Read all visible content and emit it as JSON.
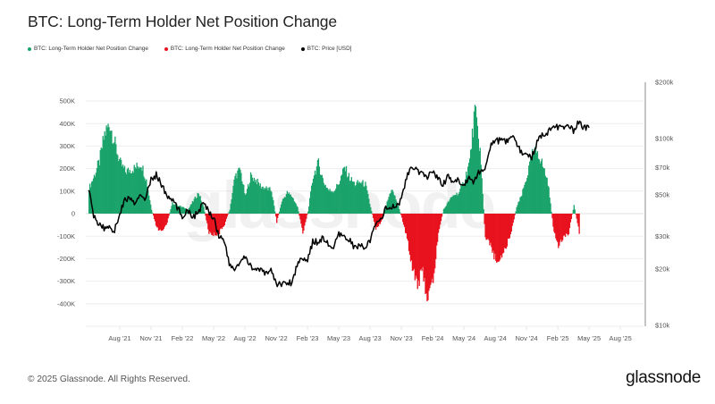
{
  "header": {
    "title": "BTC: Long-Term Holder Net Position Change"
  },
  "legend": [
    {
      "label": "BTC: Long-Term Holder Net Position Change",
      "color": "#1aa36a"
    },
    {
      "label": "BTC: Long-Term Holder Net Position Change",
      "color": "#e8121e"
    },
    {
      "label": "BTC: Price [USD]",
      "color": "#000000"
    }
  ],
  "footer": {
    "copyright": "© 2025 Glassnode. All Rights Reserved.",
    "logo": "glassnode"
  },
  "watermark": "glassnode",
  "chart_data": {
    "type": "area",
    "title": "BTC: Long-Term Holder Net Position Change",
    "xlabel": "",
    "ylabel": "",
    "y_left": {
      "ylim": [
        -450000,
        550000
      ],
      "ticks": [
        500000,
        400000,
        300000,
        200000,
        100000,
        0,
        -100000,
        -200000,
        -300000,
        -400000
      ],
      "tick_labels": [
        "500K",
        "400K",
        "300K",
        "200K",
        "100K",
        "0",
        "-100K",
        "-200K",
        "-300K",
        "-400K"
      ]
    },
    "y_right": {
      "scale": "log",
      "ylim": [
        10000,
        200000
      ],
      "ticks": [
        200000,
        100000,
        70000,
        50000,
        30000,
        20000,
        10000
      ],
      "tick_labels": [
        "$200k",
        "$100k",
        "$70k",
        "$50k",
        "$30k",
        "$20k",
        "$10k"
      ]
    },
    "x_ticks": [
      {
        "month": 3,
        "label": "Aug '21"
      },
      {
        "month": 6,
        "label": "Nov '21"
      },
      {
        "month": 9,
        "label": "Feb '22"
      },
      {
        "month": 12,
        "label": "May '22"
      },
      {
        "month": 15,
        "label": "Aug '22"
      },
      {
        "month": 18,
        "label": "Nov '22"
      },
      {
        "month": 21,
        "label": "Feb '23"
      },
      {
        "month": 24,
        "label": "May '23"
      },
      {
        "month": 27,
        "label": "Aug '23"
      },
      {
        "month": 30,
        "label": "Nov '23"
      },
      {
        "month": 33,
        "label": "Feb '24"
      },
      {
        "month": 36,
        "label": "May '24"
      },
      {
        "month": 39,
        "label": "Aug '24"
      },
      {
        "month": 42,
        "label": "Nov '24"
      },
      {
        "month": 45,
        "label": "Feb '25"
      },
      {
        "month": 48,
        "label": "May '25"
      },
      {
        "month": 51,
        "label": "Aug '25"
      }
    ],
    "x_start_label": "May 2021",
    "x_step": "half-month",
    "series": [
      {
        "name": "BTC: Long-Term Holder Net Position Change",
        "axis": "left",
        "positive_color": "#1aa36a",
        "negative_color": "#e8121e",
        "values": [
          120000,
          180000,
          250000,
          380000,
          430000,
          330000,
          240000,
          200000,
          210000,
          220000,
          240000,
          160000,
          20000,
          -70000,
          -90000,
          -40000,
          50000,
          40000,
          30000,
          20000,
          60000,
          100000,
          30000,
          -90000,
          -100000,
          -90000,
          -50000,
          20000,
          180000,
          210000,
          80000,
          180000,
          160000,
          130000,
          120000,
          110000,
          -40000,
          60000,
          100000,
          80000,
          30000,
          -90000,
          10000,
          180000,
          240000,
          150000,
          110000,
          110000,
          150000,
          220000,
          170000,
          140000,
          150000,
          140000,
          30000,
          -70000,
          -40000,
          40000,
          120000,
          60000,
          -20000,
          -120000,
          -250000,
          -330000,
          -280000,
          -410000,
          -320000,
          -90000,
          20000,
          60000,
          90000,
          100000,
          160000,
          250000,
          490000,
          300000,
          -120000,
          -140000,
          -230000,
          -200000,
          -160000,
          -80000,
          30000,
          90000,
          180000,
          280000,
          300000,
          230000,
          150000,
          -60000,
          -170000,
          -110000,
          -90000,
          40000,
          -90000
        ],
        "unit": "BTC"
      },
      {
        "name": "BTC: Price [USD]",
        "axis": "right",
        "color": "#000000",
        "values": [
          55000,
          38000,
          35000,
          33000,
          34000,
          32000,
          40000,
          47000,
          48000,
          44000,
          50000,
          48000,
          60000,
          64000,
          57000,
          49000,
          47000,
          43000,
          38000,
          42000,
          38000,
          40000,
          45000,
          41000,
          38000,
          30000,
          29000,
          21000,
          20000,
          21500,
          23000,
          21000,
          20000,
          19500,
          19000,
          20000,
          16500,
          16800,
          16800,
          17000,
          21000,
          23500,
          22000,
          28000,
          28000,
          29500,
          27000,
          26000,
          30500,
          29500,
          29000,
          26000,
          26500,
          26500,
          28000,
          34500,
          37000,
          42000,
          43000,
          42500,
          48000,
          62000,
          70000,
          67000,
          64000,
          62000,
          68000,
          61000,
          57000,
          63000,
          58000,
          60000,
          56000,
          63000,
          58000,
          67000,
          70000,
          90000,
          96000,
          98000,
          96000,
          102000,
          97000,
          84000,
          84000,
          80000,
          95000,
          106000,
          108000,
          118000,
          115000,
          112000,
          117000,
          110000,
          122000,
          114000,
          114000
        ],
        "unit": "USD"
      }
    ],
    "grid": true,
    "legend_position": "top-left"
  }
}
